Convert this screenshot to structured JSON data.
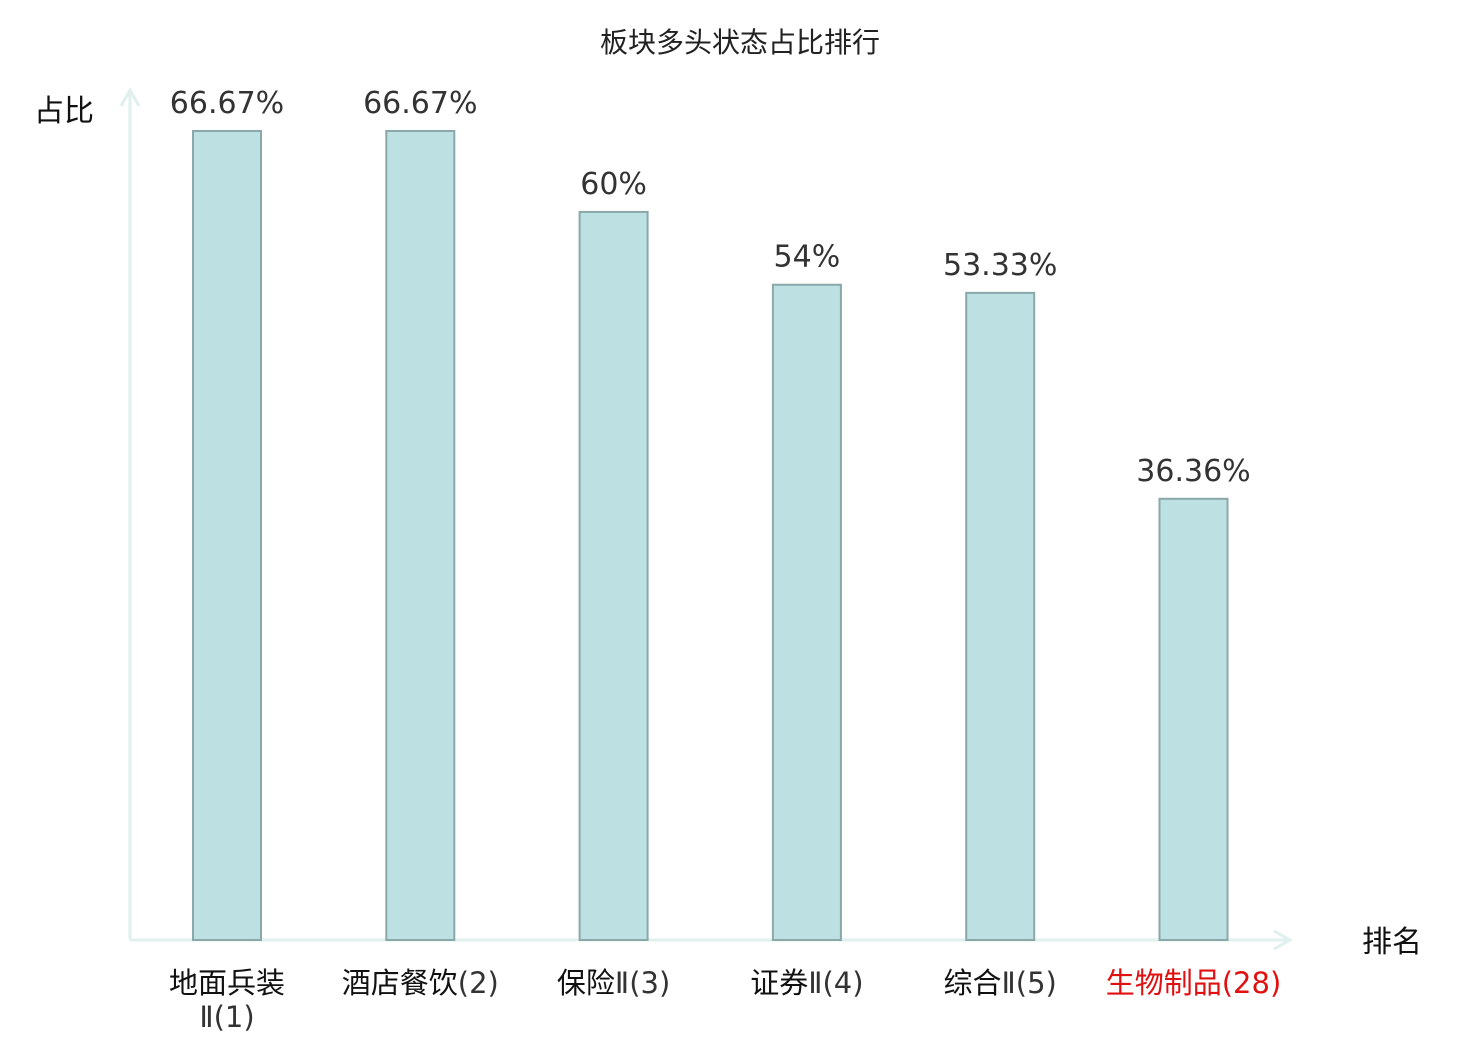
{
  "chart_data": {
    "type": "bar",
    "title": "板块多头状态占比排行",
    "ylabel": "占比",
    "xlabel": "排名",
    "ylim": [
      0,
      70
    ],
    "grid": false,
    "categories": [
      {
        "name": "地面兵装",
        "rank": "Ⅱ(1)",
        "highlight": false
      },
      {
        "name": "酒店餐饮",
        "rank": "(2)",
        "highlight": false
      },
      {
        "name": "保险",
        "rank": "Ⅱ(3)",
        "highlight": false
      },
      {
        "name": "证券",
        "rank": "Ⅱ(4)",
        "highlight": false
      },
      {
        "name": "综合",
        "rank": "Ⅱ(5)",
        "highlight": false
      },
      {
        "name": "生物制品",
        "rank": "(28)",
        "highlight": true
      }
    ],
    "values": [
      66.67,
      66.67,
      60,
      54,
      53.33,
      36.36
    ],
    "value_labels": [
      "66.67%",
      "66.67%",
      "60%",
      "54%",
      "53.33%",
      "36.36%"
    ],
    "colors": {
      "bar_fill": "#bde0e3",
      "bar_stroke": "#8aa8aa",
      "axis": "#e0f0ee",
      "label_normal": "#111111",
      "rank_normal": "#333333",
      "label_highlight": "#e01010"
    }
  }
}
